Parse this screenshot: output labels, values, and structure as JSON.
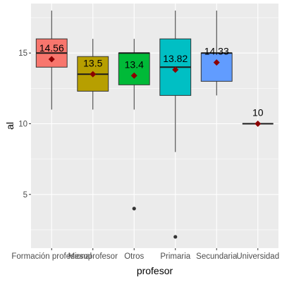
{
  "chart_data": {
    "type": "boxplot",
    "xlabel": "profesor",
    "ylabel": "al",
    "ylim": [
      1.2,
      18.5
    ],
    "y_ticks": [
      5,
      10,
      15
    ],
    "grid": true,
    "categories": [
      "Formación profesional",
      "Mesoprofesor",
      "Otros",
      "Primaria",
      "Secundaria",
      "Universidad"
    ],
    "boxes": [
      {
        "category": "Formación profesional",
        "fill": "#F8766D",
        "whisker_low": 11,
        "q1": 14,
        "median": 15,
        "q3": 16,
        "whisker_high": 18,
        "mean": 14.56,
        "mean_label": "14.56",
        "outliers": []
      },
      {
        "category": "Mesoprofesor",
        "fill": "#B79F00",
        "whisker_low": 11,
        "q1": 12.3,
        "median": 13.5,
        "q3": 14.75,
        "whisker_high": 16,
        "mean": 13.5,
        "mean_label": "13.5",
        "outliers": []
      },
      {
        "category": "Otros",
        "fill": "#00BA38",
        "whisker_low": 11,
        "q1": 12.75,
        "median": 15,
        "q3": 15,
        "whisker_high": 16,
        "mean": 13.4,
        "mean_label": "13.4",
        "outliers": [
          4
        ]
      },
      {
        "category": "Primaria",
        "fill": "#00BFC4",
        "whisker_low": 8,
        "q1": 12,
        "median": 14,
        "q3": 16,
        "whisker_high": 18,
        "mean": 13.82,
        "mean_label": "13.82",
        "outliers": [
          2
        ]
      },
      {
        "category": "Secundaria",
        "fill": "#619CFF",
        "whisker_low": 12,
        "q1": 13,
        "median": 15,
        "q3": 15,
        "whisker_high": 18,
        "mean": 14.33,
        "mean_label": "14.33",
        "outliers": []
      },
      {
        "category": "Universidad",
        "fill": "#F564E3",
        "whisker_low": 10,
        "q1": 10,
        "median": 10,
        "q3": 10,
        "whisker_high": 10,
        "mean": 10,
        "mean_label": "10",
        "outliers": []
      }
    ],
    "mean_marker_color": "#8B0000",
    "outlier_color": "#333333",
    "panel_background": "#EBEBEB",
    "gridline_color": "#FFFFFF"
  }
}
